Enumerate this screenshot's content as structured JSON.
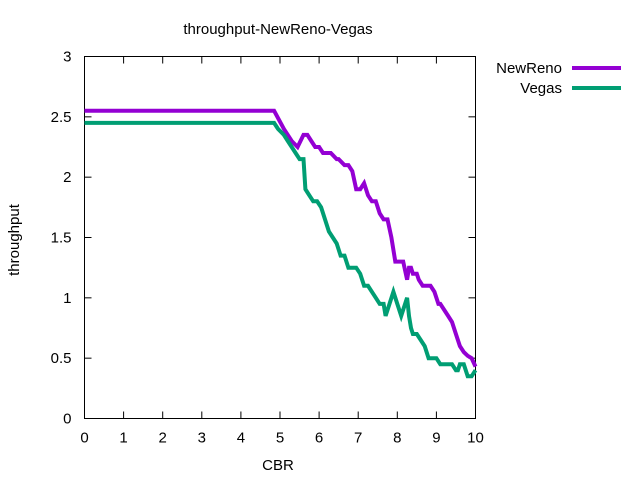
{
  "chart_data": {
    "type": "line",
    "title": "throughput-NewReno-Vegas",
    "xlabel": "CBR",
    "ylabel": "throughput",
    "xlim": [
      0,
      10
    ],
    "ylim": [
      0,
      3
    ],
    "xticks": [
      "0",
      "1",
      "2",
      "3",
      "4",
      "5",
      "6",
      "7",
      "8",
      "9",
      "10"
    ],
    "yticks": [
      "0",
      "0.5",
      "1",
      "1.5",
      "2",
      "2.5",
      "3"
    ],
    "grid": false,
    "legend_position": "outside-right-top",
    "series": [
      {
        "name": "NewReno",
        "color": "#9400d3",
        "x": [
          0,
          4.85,
          5.1,
          5.3,
          5.45,
          5.6,
          5.7,
          5.8,
          5.9,
          6.0,
          6.1,
          6.2,
          6.3,
          6.45,
          6.5,
          6.65,
          6.75,
          6.85,
          6.95,
          7.05,
          7.15,
          7.25,
          7.35,
          7.45,
          7.55,
          7.65,
          7.75,
          7.85,
          7.95,
          8.05,
          8.15,
          8.25,
          8.3,
          8.35,
          8.4,
          8.45,
          8.5,
          8.55,
          8.65,
          8.75,
          8.85,
          8.95,
          9.05,
          9.1,
          9.2,
          9.3,
          9.4,
          9.5,
          9.6,
          9.7,
          9.8,
          9.9,
          10.0
        ],
        "y": [
          2.55,
          2.55,
          2.4,
          2.3,
          2.25,
          2.35,
          2.35,
          2.3,
          2.25,
          2.25,
          2.2,
          2.2,
          2.2,
          2.15,
          2.15,
          2.1,
          2.1,
          2.05,
          1.9,
          1.9,
          1.95,
          1.85,
          1.8,
          1.8,
          1.7,
          1.65,
          1.65,
          1.5,
          1.3,
          1.3,
          1.3,
          1.15,
          1.25,
          1.25,
          1.2,
          1.2,
          1.2,
          1.15,
          1.1,
          1.1,
          1.1,
          1.05,
          0.95,
          0.95,
          0.9,
          0.85,
          0.8,
          0.7,
          0.6,
          0.55,
          0.52,
          0.5,
          0.43
        ]
      },
      {
        "name": "Vegas",
        "color": "#009e73",
        "x": [
          0,
          4.85,
          4.95,
          5.1,
          5.2,
          5.3,
          5.4,
          5.5,
          5.6,
          5.65,
          5.75,
          5.85,
          5.95,
          6.05,
          6.15,
          6.25,
          6.35,
          6.45,
          6.55,
          6.65,
          6.75,
          6.85,
          6.95,
          7.05,
          7.15,
          7.25,
          7.35,
          7.45,
          7.55,
          7.65,
          7.7,
          7.8,
          7.9,
          8.0,
          8.1,
          8.2,
          8.25,
          8.3,
          8.35,
          8.4,
          8.5,
          8.6,
          8.7,
          8.8,
          8.9,
          9.0,
          9.1,
          9.2,
          9.3,
          9.4,
          9.5,
          9.55,
          9.6,
          9.7,
          9.8,
          9.9,
          10.0
        ],
        "y": [
          2.45,
          2.45,
          2.4,
          2.35,
          2.3,
          2.25,
          2.2,
          2.15,
          2.15,
          1.9,
          1.85,
          1.8,
          1.8,
          1.75,
          1.65,
          1.55,
          1.5,
          1.45,
          1.35,
          1.35,
          1.25,
          1.25,
          1.25,
          1.2,
          1.1,
          1.1,
          1.05,
          1.0,
          0.95,
          0.95,
          0.85,
          0.95,
          1.05,
          0.95,
          0.85,
          0.95,
          1.0,
          0.85,
          0.75,
          0.7,
          0.7,
          0.65,
          0.6,
          0.5,
          0.5,
          0.5,
          0.45,
          0.45,
          0.45,
          0.45,
          0.4,
          0.4,
          0.45,
          0.45,
          0.35,
          0.35,
          0.4
        ]
      }
    ]
  }
}
